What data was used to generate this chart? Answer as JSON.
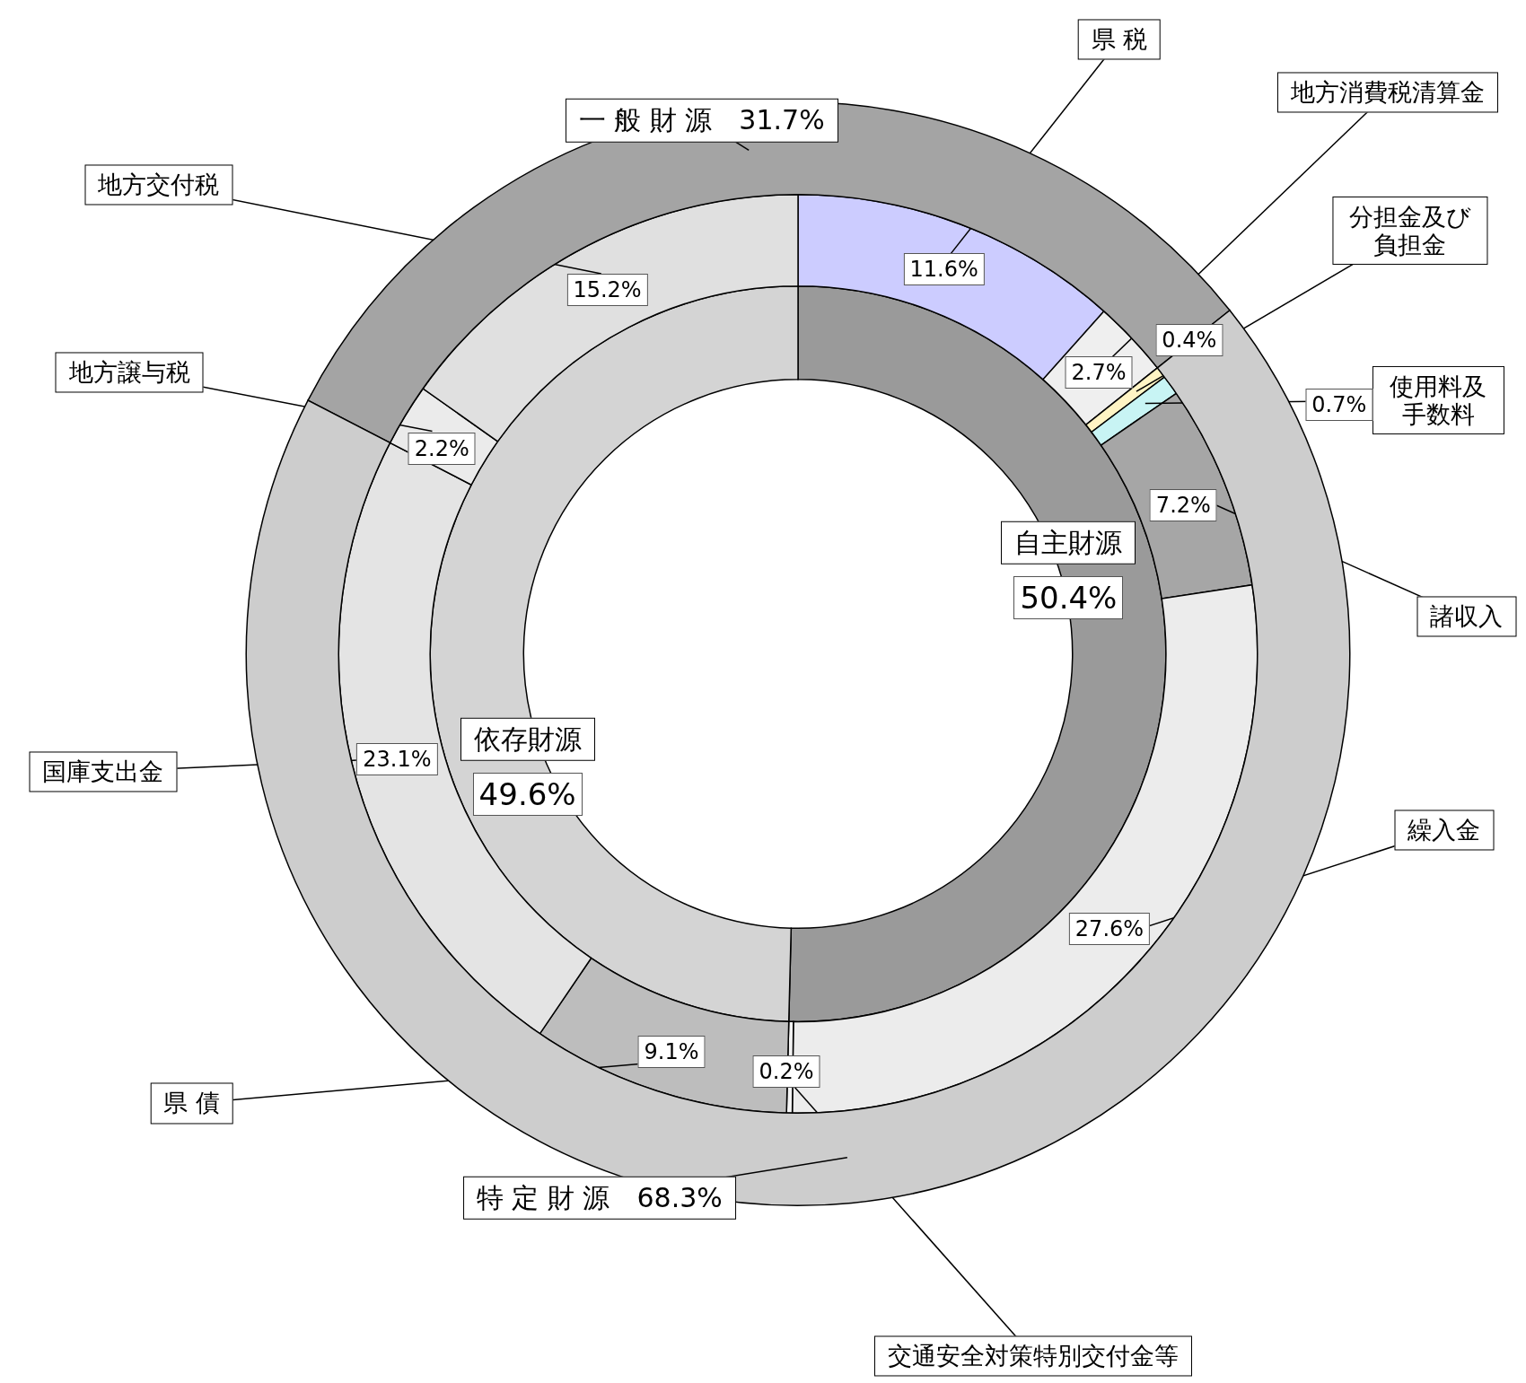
{
  "chart_data": [
    {
      "type": "donut",
      "categories": [
        "自主財源",
        "依存財源"
      ],
      "values": [
        50.4,
        49.6
      ],
      "colors": [
        "#9a9a9a",
        "#d4d4d4"
      ],
      "value_labels": [
        "50.4%",
        "49.6%"
      ]
    },
    {
      "type": "donut",
      "categories": [
        "県 税",
        "地方消費税清算金",
        "分担金及び負担金",
        "使用料及手数料",
        "諸収入",
        "繰入金",
        "交通安全対策特別交付金等",
        "県 債",
        "国庫支出金",
        "地方譲与税",
        "地方交付税"
      ],
      "values": [
        11.6,
        2.7,
        0.4,
        0.7,
        7.2,
        27.6,
        0.2,
        9.1,
        23.1,
        2.2,
        15.2
      ],
      "colors": [
        "#ccccff",
        "#efefef",
        "#fff4c4",
        "#c8f4f4",
        "#a6a6a6",
        "#ececec",
        "#f4f4f4",
        "#bdbdbd",
        "#e4e4e4",
        "#ebebeb",
        "#e0e0e0"
      ],
      "value_labels": [
        "11.6%",
        "2.7%",
        "0.4%",
        "0.7%",
        "7.2%",
        "27.6%",
        "0.2%",
        "9.1%",
        "23.1%",
        "2.2%",
        "15.2%"
      ]
    },
    {
      "type": "donut",
      "categories": [
        "一 般 財 源",
        "特 定 財 源"
      ],
      "values": [
        31.7,
        68.3
      ],
      "colors": [
        "#a4a4a4",
        "#cdcdcd"
      ],
      "value_labels": [
        "31.7%",
        "68.3%"
      ]
    }
  ]
}
